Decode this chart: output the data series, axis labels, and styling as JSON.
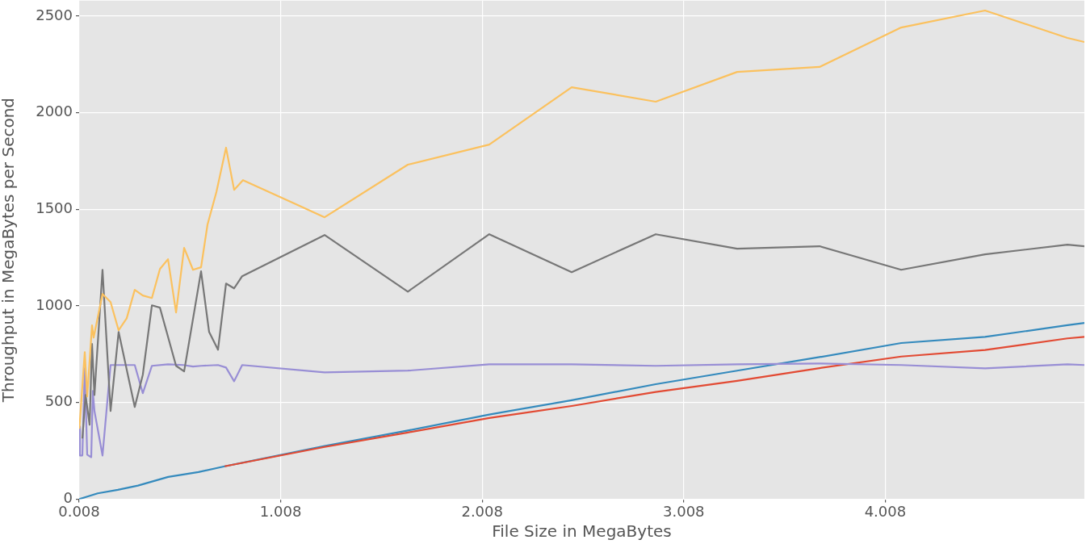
{
  "chart_data": {
    "type": "line",
    "xlabel": "File Size in MegaBytes",
    "ylabel": "Throughput in MegaBytes per Second",
    "xlim": [
      0.008,
      4.996
    ],
    "xticks": [
      0.008,
      1.008,
      2.008,
      3.008,
      4.008
    ],
    "ylim": [
      0,
      2580
    ],
    "yticks": [
      0,
      500,
      1000,
      1500,
      2000,
      2500
    ],
    "grid": true,
    "legend": false,
    "marker": "none",
    "line_style": "solid",
    "series": [
      {
        "color": "#fbc15e",
        "x": [
          0.009,
          0.036,
          0.048,
          0.072,
          0.08,
          0.124,
          0.164,
          0.204,
          0.244,
          0.284,
          0.324,
          0.369,
          0.409,
          0.449,
          0.489,
          0.529,
          0.573,
          0.613,
          0.645,
          0.689,
          0.737,
          0.777,
          0.821,
          1.226,
          1.639,
          2.043,
          2.452,
          2.869,
          3.273,
          3.682,
          4.087,
          4.503,
          4.912,
          4.996
        ],
        "values": [
          364,
          761,
          531,
          899,
          836,
          1062,
          1020,
          874,
          936,
          1083,
          1054,
          1041,
          1191,
          1242,
          966,
          1300,
          1187,
          1200,
          1421,
          1589,
          1819,
          1601,
          1651,
          1459,
          1731,
          1835,
          2132,
          2057,
          2211,
          2237,
          2441,
          2529,
          2387,
          2366
        ]
      },
      {
        "color": "#777777",
        "x": [
          0.024,
          0.04,
          0.06,
          0.072,
          0.084,
          0.124,
          0.164,
          0.204,
          0.284,
          0.324,
          0.369,
          0.409,
          0.489,
          0.529,
          0.613,
          0.653,
          0.697,
          0.737,
          0.777,
          0.817,
          1.226,
          1.639,
          2.043,
          2.452,
          2.869,
          3.273,
          3.682,
          4.087,
          4.503,
          4.912,
          4.996
        ],
        "values": [
          314,
          539,
          385,
          803,
          539,
          1187,
          456,
          865,
          477,
          644,
          1003,
          991,
          690,
          661,
          1179,
          865,
          773,
          1116,
          1091,
          1154,
          1367,
          1074,
          1371,
          1175,
          1371,
          1296,
          1309,
          1187,
          1267,
          1317,
          1309
        ]
      },
      {
        "color": "#988ed5",
        "x": [
          0.008,
          0.012,
          0.024,
          0.036,
          0.048,
          0.068,
          0.076,
          0.084,
          0.124,
          0.164,
          0.284,
          0.324,
          0.369,
          0.449,
          0.525,
          0.573,
          0.613,
          0.697,
          0.737,
          0.777,
          0.817,
          1.226,
          1.639,
          2.043,
          2.452,
          2.869,
          3.273,
          3.682,
          4.087,
          4.503,
          4.912,
          4.996
        ],
        "values": [
          376,
          226,
          226,
          678,
          230,
          217,
          560,
          456,
          226,
          694,
          694,
          548,
          690,
          698,
          694,
          686,
          690,
          694,
          681,
          610,
          694,
          656,
          665,
          698,
          698,
          690,
          698,
          702,
          694,
          677,
          698,
          694
        ]
      },
      {
        "color": "#e24a33",
        "x": [
          0.73,
          1.226,
          1.639,
          2.043,
          2.452,
          2.869,
          3.273,
          3.682,
          4.087,
          4.503,
          4.912,
          4.996
        ],
        "values": [
          170,
          270,
          345,
          420,
          482,
          555,
          612,
          678,
          738,
          772,
          832,
          840
        ]
      },
      {
        "color": "#348abd",
        "x": [
          0.008,
          0.1,
          0.2,
          0.3,
          0.45,
          0.6,
          0.73,
          1.226,
          1.639,
          2.043,
          2.452,
          2.869,
          3.273,
          3.682,
          4.087,
          4.503,
          4.912,
          4.996
        ],
        "values": [
          0,
          30,
          48,
          70,
          115,
          140,
          170,
          275,
          355,
          438,
          512,
          595,
          665,
          735,
          808,
          840,
          900,
          912
        ]
      }
    ]
  }
}
